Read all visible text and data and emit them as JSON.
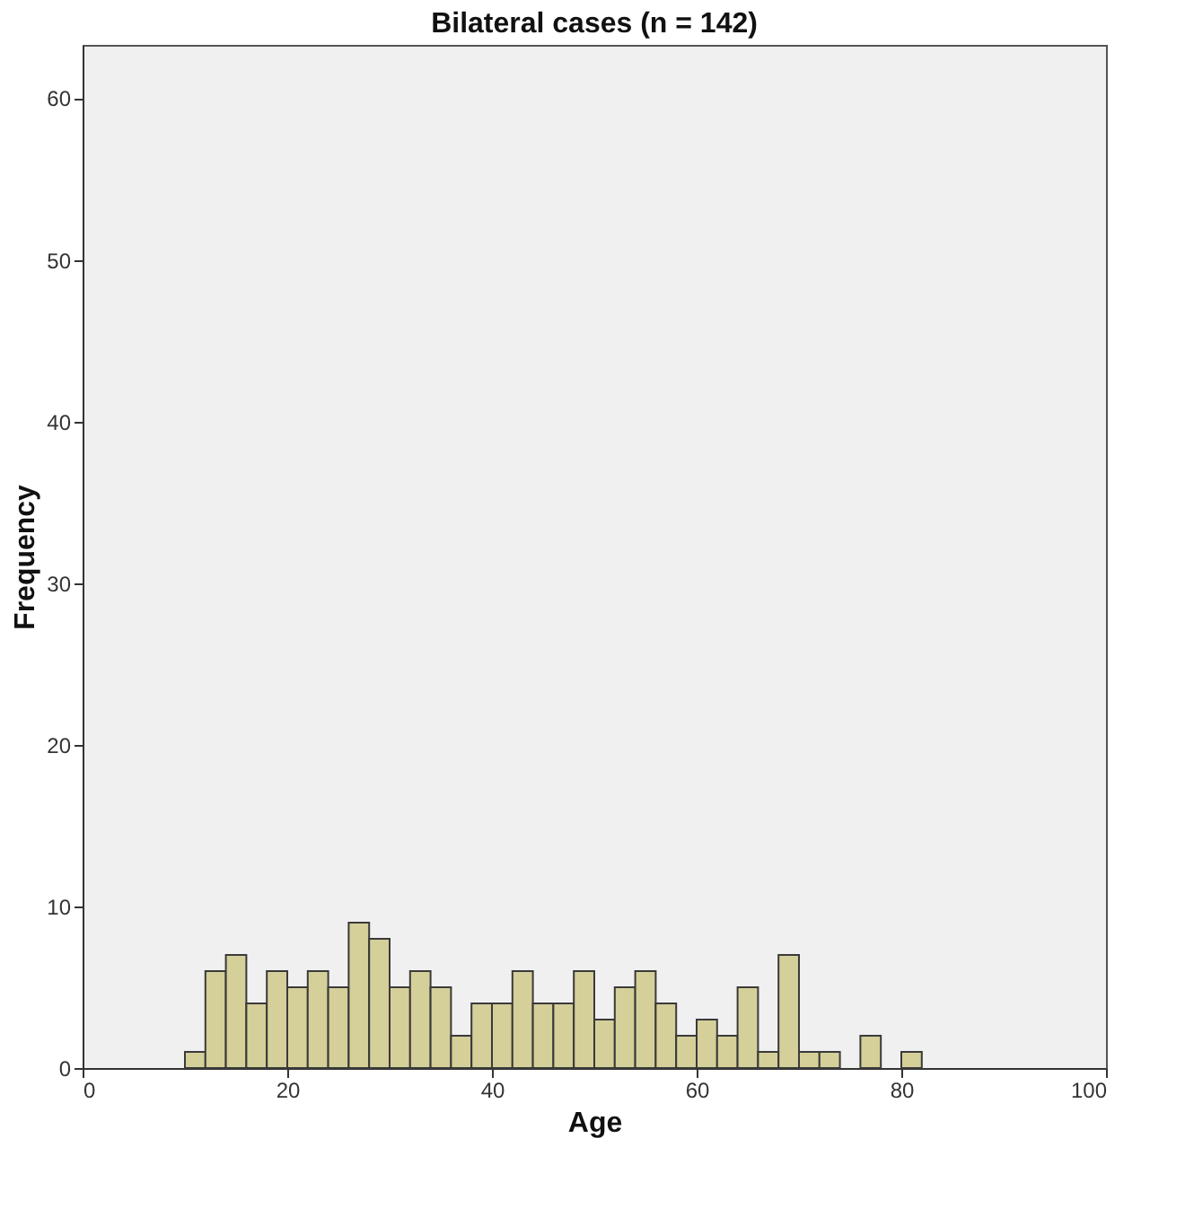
{
  "chart_data": {
    "type": "histogram",
    "title": "Bilateral cases (n = 142)",
    "xlabel": "Age",
    "ylabel": "Frequency",
    "bins": [
      10,
      12,
      14,
      16,
      18,
      20,
      22,
      24,
      26,
      28,
      30,
      32,
      34,
      36,
      38,
      40,
      42,
      44,
      46,
      48,
      50,
      52,
      54,
      56,
      58,
      60,
      62,
      64,
      66,
      68,
      70,
      72,
      74,
      76,
      78,
      80,
      82
    ],
    "values": [
      1,
      6,
      7,
      4,
      6,
      5,
      6,
      5,
      9,
      8,
      5,
      6,
      5,
      2,
      4,
      4,
      6,
      4,
      4,
      6,
      3,
      5,
      6,
      4,
      2,
      3,
      2,
      5,
      1,
      7,
      1,
      1,
      0,
      2,
      0,
      1
    ],
    "color": "#d5cf99",
    "xlim": [
      0,
      100
    ],
    "xticks": [
      0,
      20,
      40,
      60,
      80,
      100
    ],
    "ylim": [
      0,
      63.3
    ],
    "yticks": [
      0,
      10,
      20,
      30,
      40,
      50,
      60
    ],
    "grid": false
  }
}
